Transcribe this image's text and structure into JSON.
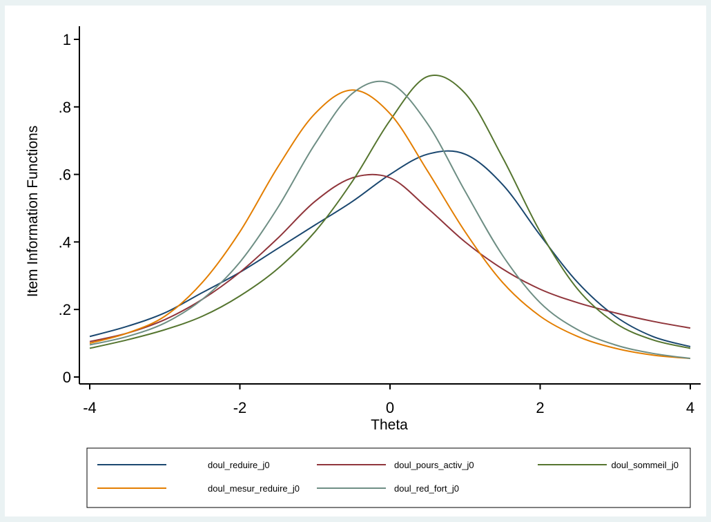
{
  "chart_data": {
    "type": "line",
    "title": "",
    "xlabel": "Theta",
    "ylabel": "Item Information Functions",
    "xlim": [
      -4,
      4
    ],
    "ylim": [
      0,
      1
    ],
    "x_ticks": [
      -4,
      -2,
      0,
      2,
      4
    ],
    "x_tick_labels": [
      "-4",
      "-2",
      "0",
      "2",
      "4"
    ],
    "y_ticks": [
      0,
      0.2,
      0.4,
      0.6,
      0.8,
      1
    ],
    "y_tick_labels": [
      "0",
      ".2",
      ".4",
      ".6",
      ".8",
      "1"
    ],
    "grid": false,
    "legend_position": "bottom",
    "x": [
      -4,
      -3.5,
      -3,
      -2.5,
      -2,
      -1.5,
      -1,
      -0.5,
      0,
      0.5,
      1,
      1.5,
      2,
      2.5,
      3,
      3.5,
      4
    ],
    "series": [
      {
        "name": "doul_reduire_j0",
        "color": "#1a476f",
        "values": [
          0.12,
          0.15,
          0.19,
          0.25,
          0.31,
          0.38,
          0.45,
          0.52,
          0.6,
          0.66,
          0.66,
          0.57,
          0.42,
          0.28,
          0.18,
          0.12,
          0.09
        ]
      },
      {
        "name": "doul_pours_activ_j0",
        "color": "#90353b",
        "values": [
          0.105,
          0.13,
          0.17,
          0.23,
          0.31,
          0.41,
          0.52,
          0.59,
          0.59,
          0.5,
          0.4,
          0.32,
          0.26,
          0.22,
          0.19,
          0.165,
          0.145
        ]
      },
      {
        "name": "doul_sommeil_j0",
        "color": "#55752f",
        "values": [
          0.085,
          0.11,
          0.14,
          0.18,
          0.24,
          0.32,
          0.43,
          0.58,
          0.76,
          0.89,
          0.84,
          0.65,
          0.43,
          0.26,
          0.16,
          0.11,
          0.085
        ]
      },
      {
        "name": "doul_mesur_reduire_j0",
        "color": "#e37e00",
        "values": [
          0.1,
          0.13,
          0.18,
          0.28,
          0.43,
          0.62,
          0.78,
          0.85,
          0.78,
          0.61,
          0.43,
          0.28,
          0.18,
          0.12,
          0.085,
          0.065,
          0.055
        ]
      },
      {
        "name": "doul_red_fort_j0",
        "color": "#6e8e84",
        "values": [
          0.095,
          0.12,
          0.16,
          0.23,
          0.34,
          0.5,
          0.69,
          0.84,
          0.87,
          0.75,
          0.55,
          0.36,
          0.22,
          0.14,
          0.095,
          0.07,
          0.055
        ]
      }
    ]
  }
}
